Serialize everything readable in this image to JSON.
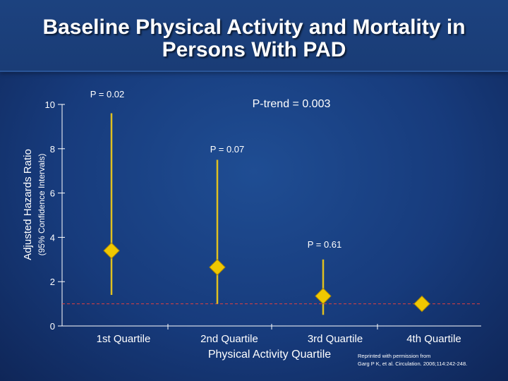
{
  "slide": {
    "title_line_1": "Baseline Physical Activity and Mortality in",
    "title_line_2": "Persons With PAD",
    "reprint_line_1": "Reprinted with permission from",
    "reprint_line_2": "Garg P K, et al. Circulation. 2006;114:242-248."
  },
  "colors": {
    "error_bar": "#e0c020",
    "marker": "#f0c800",
    "reference_line": "#e04040",
    "axis": "#ffffff"
  },
  "chart_data": {
    "type": "scatter",
    "title": "Baseline Physical Activity and Mortality in Persons With PAD",
    "xlabel": "Physical Activity Quartile",
    "ylabel": "Adjusted Hazards Ratio",
    "ylabel_sub": "(95% Confidence Intervals)",
    "ylim": [
      0,
      10
    ],
    "yticks": [
      0,
      2,
      4,
      6,
      8,
      10
    ],
    "ytick_labels": [
      "0",
      "2",
      "4",
      "6",
      "8",
      "10"
    ],
    "reference_line": 1,
    "categories": [
      "1st Quartile",
      "2nd Quartile",
      "3rd Quartile",
      "4th Quartile"
    ],
    "points": [
      {
        "category": "1st Quartile",
        "hr": 3.4,
        "ci_low": 1.4,
        "ci_high": 9.6,
        "p_label": "P = 0.02"
      },
      {
        "category": "2nd Quartile",
        "hr": 2.65,
        "ci_low": 1.0,
        "ci_high": 7.5,
        "p_label": "P = 0.07"
      },
      {
        "category": "3rd Quartile",
        "hr": 1.35,
        "ci_low": 0.5,
        "ci_high": 3.0,
        "p_label": "P = 0.61"
      },
      {
        "category": "4th Quartile",
        "hr": 1.0,
        "ci_low": null,
        "ci_high": null,
        "p_label": ""
      }
    ],
    "annotations": {
      "p_trend": "P-trend  = 0.003"
    },
    "grid": false,
    "legend": "none"
  }
}
